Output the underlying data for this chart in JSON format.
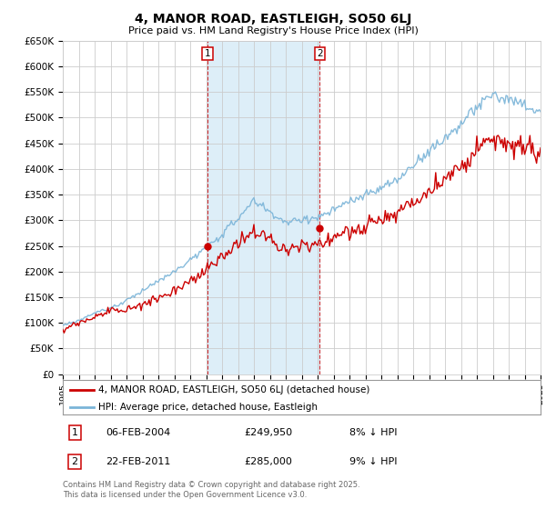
{
  "title": "4, MANOR ROAD, EASTLEIGH, SO50 6LJ",
  "subtitle": "Price paid vs. HM Land Registry's House Price Index (HPI)",
  "ylabel_ticks": [
    "£0",
    "£50K",
    "£100K",
    "£150K",
    "£200K",
    "£250K",
    "£300K",
    "£350K",
    "£400K",
    "£450K",
    "£500K",
    "£550K",
    "£600K",
    "£650K"
  ],
  "ylim": [
    0,
    650000
  ],
  "ytick_values": [
    0,
    50000,
    100000,
    150000,
    200000,
    250000,
    300000,
    350000,
    400000,
    450000,
    500000,
    550000,
    600000,
    650000
  ],
  "hpi_color": "#7ab4d8",
  "price_color": "#cc0000",
  "shaded_color": "#ddeef8",
  "grid_color": "#cccccc",
  "bg_color": "#ffffff",
  "legend_label_price": "4, MANOR ROAD, EASTLEIGH, SO50 6LJ (detached house)",
  "legend_label_hpi": "HPI: Average price, detached house, Eastleigh",
  "table_row1": [
    "1",
    "06-FEB-2004",
    "£249,950",
    "8% ↓ HPI"
  ],
  "table_row2": [
    "2",
    "22-FEB-2011",
    "£285,000",
    "9% ↓ HPI"
  ],
  "footer": "Contains HM Land Registry data © Crown copyright and database right 2025.\nThis data is licensed under the Open Government Licence v3.0.",
  "xlim_start": 1995,
  "xlim_end": 2025,
  "sale1_year": 2004.09,
  "sale1_price": 249950,
  "sale2_year": 2011.13,
  "sale2_price": 285000
}
